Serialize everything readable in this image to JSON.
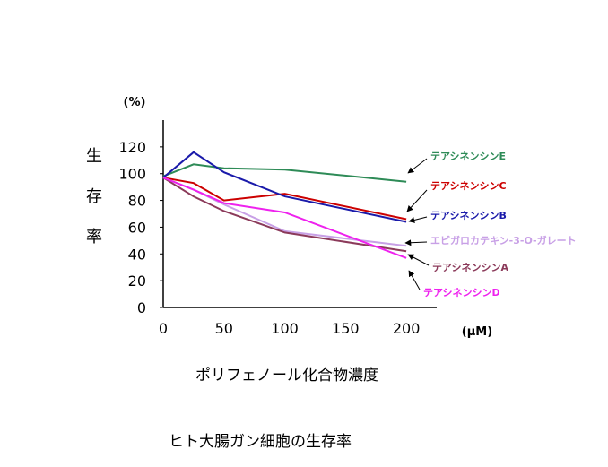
{
  "chart_data": {
    "type": "line",
    "title": "",
    "xlabel": "ポリフェノール化合物濃度",
    "ylabel": "生存率",
    "y_unit": "(%)",
    "x_unit": "(μM)",
    "caption": "ヒト大腸ガン細胞の生存率",
    "x": [
      0,
      25,
      50,
      100,
      200
    ],
    "x_ticks": [
      "0",
      "50",
      "100",
      "150",
      "200"
    ],
    "y_ticks": [
      "0",
      "20",
      "40",
      "60",
      "80",
      "100",
      "120"
    ],
    "xlim": [
      0,
      225
    ],
    "ylim": [
      0,
      140
    ],
    "grid": false,
    "legend": "right, arrow annotations",
    "series": [
      {
        "name": "テアシネンシンE",
        "color": "#2e8b57",
        "values": [
          98,
          107,
          104,
          103,
          94
        ]
      },
      {
        "name": "テアシネンシンC",
        "color": "#cc0000",
        "values": [
          97,
          93,
          80,
          85,
          66
        ]
      },
      {
        "name": "テアシネンシンB",
        "color": "#1a1aaa",
        "values": [
          97,
          116,
          101,
          83,
          64
        ]
      },
      {
        "name": "エピガロカテキン-3-O-ガレート",
        "color": "#c8a0e6",
        "values": [
          97,
          88,
          77,
          57,
          46
        ]
      },
      {
        "name": "テアシネンシンA",
        "color": "#8b3a5a",
        "values": [
          97,
          83,
          72,
          56,
          42
        ]
      },
      {
        "name": "テアシネンシンD",
        "color": "#ee22ee",
        "values": [
          97,
          88,
          78,
          71,
          37
        ]
      }
    ]
  }
}
